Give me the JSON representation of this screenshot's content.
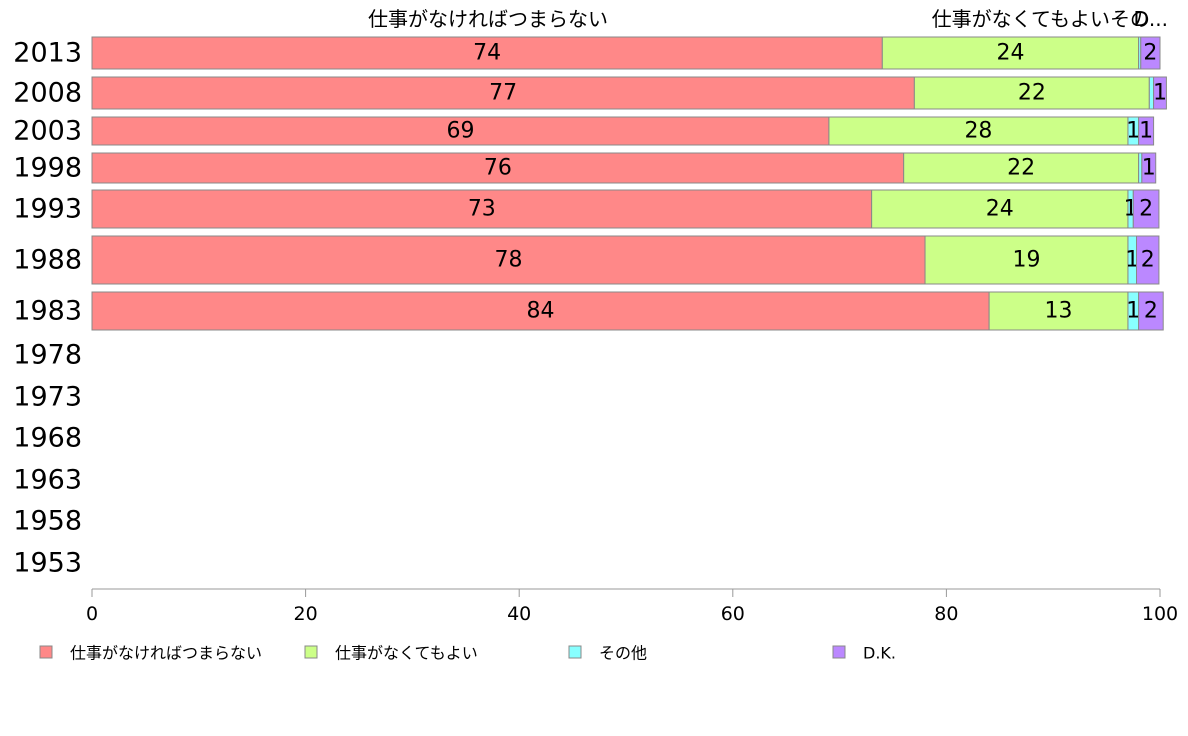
{
  "chart_data": {
    "type": "bar",
    "orientation": "horizontal",
    "stacked": true,
    "categories": [
      "2013",
      "2008",
      "2003",
      "1998",
      "1993",
      "1988",
      "1983",
      "1978",
      "1973",
      "1968",
      "1963",
      "1958",
      "1953"
    ],
    "series": [
      {
        "name": "仕事がなければつまらない",
        "color": "#ff8888",
        "values": [
          74,
          77,
          69,
          76,
          73,
          78,
          84,
          null,
          null,
          null,
          null,
          null,
          null
        ],
        "labels": [
          "74",
          "77",
          "69",
          "76",
          "73",
          "78",
          "84",
          "",
          "",
          "",
          "",
          "",
          ""
        ]
      },
      {
        "name": "仕事がなくてもよい",
        "color": "#ccff88",
        "values": [
          24,
          22,
          28,
          22,
          24,
          19,
          13,
          null,
          null,
          null,
          null,
          null,
          null
        ],
        "labels": [
          "24",
          "22",
          "28",
          "22",
          "24",
          "19",
          "13",
          "",
          "",
          "",
          "",
          "",
          ""
        ]
      },
      {
        "name": "その他",
        "color": "#88ffff",
        "values": [
          0.2,
          0.4,
          1,
          0.3,
          0.5,
          0.8,
          1,
          null,
          null,
          null,
          null,
          null,
          null
        ],
        "labels": [
          "",
          "",
          "1",
          "",
          "1",
          "1",
          "1",
          "",
          "",
          "",
          "",
          "",
          ""
        ]
      },
      {
        "name": "D.K.",
        "color": "#bb88ff",
        "values": [
          1.8,
          1.2,
          1.4,
          1.3,
          2.4,
          2.1,
          2.3,
          null,
          null,
          null,
          null,
          null,
          null
        ],
        "labels": [
          "2",
          "1",
          "1",
          "1",
          "2",
          "2",
          "2",
          "",
          "",
          "",
          "",
          "",
          ""
        ]
      }
    ],
    "top_labels": [
      "仕事がなければつまらない",
      "仕事がなくてもよいその",
      "D..."
    ],
    "xlim": [
      0,
      100
    ],
    "xticks": [
      "0",
      "20",
      "40",
      "60",
      "80",
      "100"
    ],
    "legend_position": "bottom",
    "grid": false
  }
}
